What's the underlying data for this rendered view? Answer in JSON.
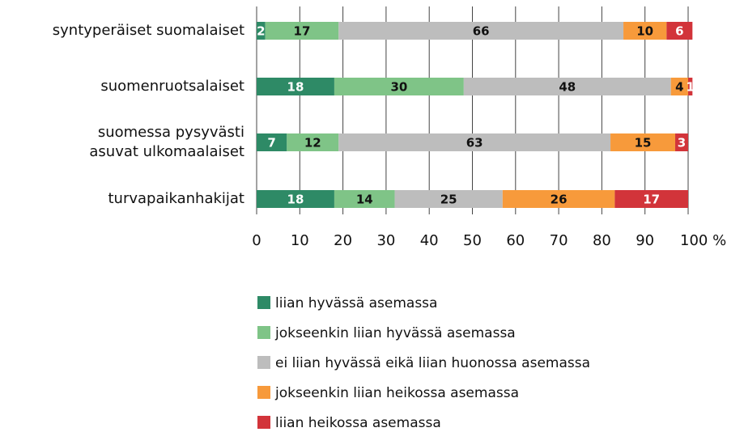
{
  "chart_data": {
    "type": "stacked_bar_horizontal",
    "categories": [
      "syntyperäiset suomalaiset",
      "suomenruotsalaiset",
      "suomessa pysyvästi\nasuvat ulkomaalaiset",
      "turvapaikanhakijat"
    ],
    "series": [
      {
        "name": "liian hyvässä asemassa",
        "color": "#2e8a66",
        "label_color": "#ffffff",
        "values": [
          2,
          18,
          7,
          18
        ]
      },
      {
        "name": "jokseenkin liian hyvässä asemassa",
        "color": "#7fc487",
        "label_color": "#111111",
        "values": [
          17,
          30,
          12,
          14
        ]
      },
      {
        "name": "ei liian hyvässä eikä liian huonossa asemassa",
        "color": "#bdbdbd",
        "label_color": "#111111",
        "values": [
          66,
          48,
          63,
          25
        ]
      },
      {
        "name": "jokseenkin liian heikossa asemassa",
        "color": "#f79a3b",
        "label_color": "#111111",
        "values": [
          10,
          4,
          15,
          26
        ]
      },
      {
        "name": "liian heikossa asemassa",
        "color": "#d2343a",
        "label_color": "#ffffff",
        "values": [
          6,
          1,
          3,
          17
        ]
      }
    ],
    "xlim": [
      0,
      100
    ],
    "xticks": [
      0,
      10,
      20,
      30,
      40,
      50,
      60,
      70,
      80,
      90,
      {
        "value": 100,
        "label": "100 %"
      }
    ],
    "grid": true,
    "legend": "bottom"
  }
}
